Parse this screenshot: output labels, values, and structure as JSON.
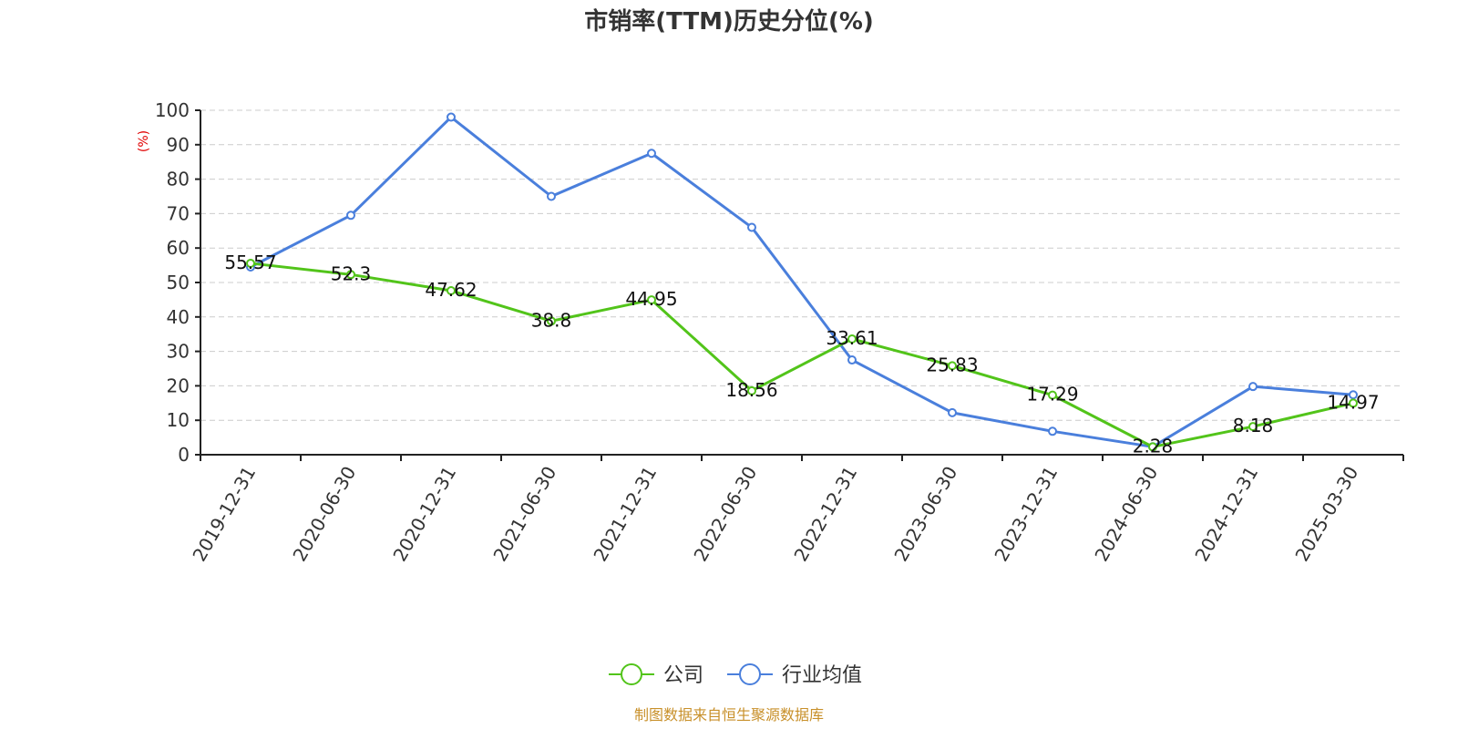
{
  "chart_data": {
    "type": "line",
    "title": "市销率(TTM)历史分位(%)",
    "ylabel": "(%)",
    "xlabel": "",
    "categories": [
      "2019-12-31",
      "2020-06-30",
      "2020-12-31",
      "2021-06-30",
      "2021-12-31",
      "2022-06-30",
      "2022-12-31",
      "2023-06-30",
      "2023-12-31",
      "2024-06-30",
      "2024-12-31",
      "2025-03-30"
    ],
    "ylim": [
      0,
      100
    ],
    "yticks": [
      0,
      10,
      20,
      30,
      40,
      50,
      60,
      70,
      80,
      90,
      100
    ],
    "grid": true,
    "legend_position": "bottom-center",
    "series": [
      {
        "name": "公司",
        "color": "#52c41a",
        "values": [
          55.57,
          52.3,
          47.62,
          38.8,
          44.95,
          18.56,
          33.61,
          25.83,
          17.29,
          2.28,
          8.18,
          14.97
        ],
        "labels": [
          "55.57",
          "52.3",
          "47.62",
          "38.8",
          "44.95",
          "18.56",
          "33.61",
          "25.83",
          "17.29",
          "2.28",
          "8.18",
          "14.97"
        ]
      },
      {
        "name": "行业均值",
        "color": "#4a7fdc",
        "values": [
          54.5,
          69.5,
          98,
          75,
          87.5,
          66,
          27.5,
          12.2,
          6.8,
          2.3,
          19.8,
          17.4
        ]
      }
    ]
  },
  "footer": {
    "source": "制图数据来自恒生聚源数据库"
  }
}
